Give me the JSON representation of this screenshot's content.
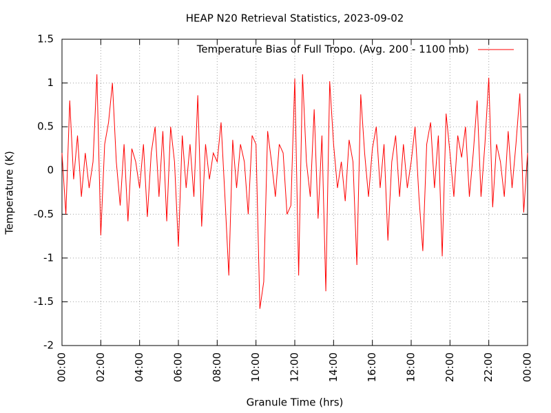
{
  "chart_data": {
    "type": "line",
    "title": "HEAP N20 Retrieval Statistics, 2023-09-02",
    "x_label": "Granule Time (hrs)",
    "y_label": "Temperature (K)",
    "xlim": [
      0,
      24
    ],
    "xticks": [
      {
        "value": 0,
        "label": "00:00"
      },
      {
        "value": 2,
        "label": "02:00"
      },
      {
        "value": 4,
        "label": "04:00"
      },
      {
        "value": 6,
        "label": "06:00"
      },
      {
        "value": 8,
        "label": "08:00"
      },
      {
        "value": 10,
        "label": "10:00"
      },
      {
        "value": 12,
        "label": "12:00"
      },
      {
        "value": 14,
        "label": "14:00"
      },
      {
        "value": 16,
        "label": "16:00"
      },
      {
        "value": 18,
        "label": "18:00"
      },
      {
        "value": 20,
        "label": "20:00"
      },
      {
        "value": 22,
        "label": "22:00"
      },
      {
        "value": 24,
        "label": "00:00"
      }
    ],
    "ylim": [
      -2,
      1.5
    ],
    "yticks": [
      1.5,
      1,
      0.5,
      0,
      -0.5,
      -1,
      -1.5,
      -2
    ],
    "grid": true,
    "legend": "top-right",
    "x": [
      0,
      0.2,
      0.4,
      0.6,
      0.8,
      1,
      1.2,
      1.4,
      1.6,
      1.8,
      2,
      2.2,
      2.4,
      2.6,
      2.8,
      3,
      3.2,
      3.4,
      3.6,
      3.8,
      4,
      4.2,
      4.4,
      4.6,
      4.8,
      5,
      5.2,
      5.4,
      5.6,
      5.8,
      6,
      6.2,
      6.4,
      6.6,
      6.8,
      7,
      7.2,
      7.4,
      7.6,
      7.8,
      8,
      8.2,
      8.4,
      8.6,
      8.8,
      9,
      9.2,
      9.4,
      9.6,
      9.8,
      10,
      10.2,
      10.4,
      10.6,
      10.8,
      11,
      11.2,
      11.4,
      11.6,
      11.8,
      12,
      12.2,
      12.4,
      12.6,
      12.8,
      13,
      13.2,
      13.4,
      13.6,
      13.8,
      14,
      14.2,
      14.4,
      14.6,
      14.8,
      15,
      15.2,
      15.4,
      15.6,
      15.8,
      16,
      16.2,
      16.4,
      16.6,
      16.8,
      17,
      17.2,
      17.4,
      17.6,
      17.8,
      18,
      18.2,
      18.4,
      18.6,
      18.8,
      19,
      19.2,
      19.4,
      19.6,
      19.8,
      20,
      20.2,
      20.4,
      20.6,
      20.8,
      21,
      21.2,
      21.4,
      21.6,
      21.8,
      22,
      22.2,
      22.4,
      22.6,
      22.8,
      23,
      23.2,
      23.4,
      23.6,
      23.8,
      24
    ],
    "series": [
      {
        "name": "Temperature Bias of Full Tropo. (Avg. 200 - 1100 mb)",
        "color": "#ff0000",
        "values": [
          0.2,
          -0.5,
          0.8,
          -0.1,
          0.4,
          -0.3,
          0.2,
          -0.2,
          0.1,
          1.1,
          -0.74,
          0.3,
          0.55,
          1.0,
          0.1,
          -0.4,
          0.3,
          -0.58,
          0.25,
          0.1,
          -0.2,
          0.3,
          -0.53,
          0.2,
          0.5,
          -0.3,
          0.45,
          -0.58,
          0.5,
          0.1,
          -0.87,
          0.4,
          -0.2,
          0.3,
          -0.3,
          0.86,
          -0.64,
          0.3,
          -0.1,
          0.2,
          0.1,
          0.55,
          -0.3,
          -1.2,
          0.35,
          -0.2,
          0.3,
          0.1,
          -0.5,
          0.4,
          0.3,
          -1.58,
          -1.27,
          0.45,
          0.1,
          -0.3,
          0.3,
          0.2,
          -0.5,
          -0.4,
          1.05,
          -1.2,
          1.1,
          0.1,
          -0.3,
          0.7,
          -0.55,
          0.4,
          -1.38,
          1.02,
          0.3,
          -0.2,
          0.1,
          -0.35,
          0.35,
          0.1,
          -1.08,
          0.87,
          0.2,
          -0.3,
          0.25,
          0.5,
          -0.2,
          0.3,
          -0.8,
          0.1,
          0.4,
          -0.3,
          0.3,
          -0.2,
          0.1,
          0.5,
          -0.3,
          -0.92,
          0.3,
          0.55,
          -0.2,
          0.4,
          -0.98,
          0.65,
          0.2,
          -0.3,
          0.4,
          0.15,
          0.5,
          -0.3,
          0.2,
          0.8,
          -0.3,
          0.3,
          1.06,
          -0.42,
          0.3,
          0.1,
          -0.3,
          0.45,
          -0.2,
          0.3,
          0.88,
          -0.48,
          0.2
        ]
      }
    ]
  }
}
